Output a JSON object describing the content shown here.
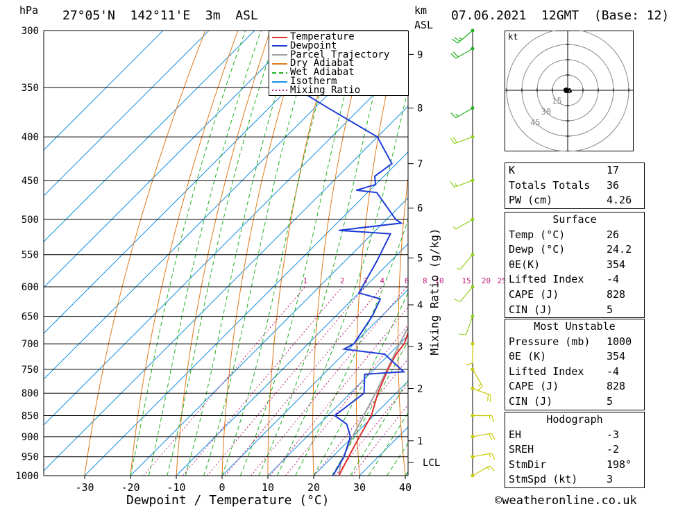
{
  "header": {
    "location": "27°05'N  142°11'E  3m  ASL",
    "datetime": "07.06.2021  12GMT  (Base: 12)",
    "pressure_unit": "hPa",
    "height_unit_line1": "km",
    "height_unit_line2": "ASL",
    "wind_unit": "kt"
  },
  "chart_data": {
    "type": "skew-t",
    "xlabel": "Dewpoint / Temperature (°C)",
    "y2label": "Mixing Ratio (g/kg)",
    "x_ticks": [
      -30,
      -20,
      -10,
      0,
      10,
      20,
      30,
      40
    ],
    "pressure_levels": [
      300,
      350,
      400,
      450,
      500,
      550,
      600,
      650,
      700,
      750,
      800,
      850,
      900,
      950,
      1000
    ],
    "height_ticks_km": [
      {
        "km": "1",
        "p": 910
      },
      {
        "km": "2",
        "p": 790
      },
      {
        "km": "3",
        "p": 705
      },
      {
        "km": "4",
        "p": 630
      },
      {
        "km": "5",
        "p": 555
      },
      {
        "km": "6",
        "p": 485
      },
      {
        "km": "7",
        "p": 430
      },
      {
        "km": "8",
        "p": 370
      },
      {
        "km": "9",
        "p": 320
      }
    ],
    "lcl": {
      "label": "LCL",
      "p": 965
    },
    "mixing_ratio_labels": [
      "1",
      "2",
      "3",
      "4",
      "6",
      "8",
      "10",
      "15",
      "20",
      "25"
    ],
    "legend": [
      {
        "name": "Temperature",
        "color": "#e03030",
        "dash": ""
      },
      {
        "name": "Dewpoint",
        "color": "#1c3bd6",
        "dash": ""
      },
      {
        "name": "Parcel Trajectory",
        "color": "#a0a0a0",
        "dash": ""
      },
      {
        "name": "Dry Adiabat",
        "color": "#e07818",
        "dash": ""
      },
      {
        "name": "Wet Adiabat",
        "color": "#20b020",
        "dash": "6,4"
      },
      {
        "name": "Isotherm",
        "color": "#1890e0",
        "dash": ""
      },
      {
        "name": "Mixing Ratio",
        "color": "#c02080",
        "dash": "2,3"
      }
    ],
    "temperature": [
      {
        "p": 1000,
        "t": 25.5
      },
      {
        "p": 950,
        "t": 23.5
      },
      {
        "p": 900,
        "t": 21.5
      },
      {
        "p": 850,
        "t": 19.5
      },
      {
        "p": 800,
        "t": 16.0
      },
      {
        "p": 750,
        "t": 13.0
      },
      {
        "p": 720,
        "t": 11.5
      },
      {
        "p": 700,
        "t": 11.0
      },
      {
        "p": 680,
        "t": 9.5
      },
      {
        "p": 650,
        "t": 8.0
      },
      {
        "p": 600,
        "t": 4.5
      },
      {
        "p": 550,
        "t": 1.0
      },
      {
        "p": 500,
        "t": -3.5
      },
      {
        "p": 450,
        "t": -8.0
      },
      {
        "p": 440,
        "t": -8.5
      },
      {
        "p": 400,
        "t": -13.5
      },
      {
        "p": 350,
        "t": -20.0
      }
    ],
    "dewpoint": [
      {
        "p": 1000,
        "t": 24.2
      },
      {
        "p": 950,
        "t": 22.5
      },
      {
        "p": 900,
        "t": 19.5
      },
      {
        "p": 870,
        "t": 16.0
      },
      {
        "p": 850,
        "t": 11.5
      },
      {
        "p": 800,
        "t": 13.0
      },
      {
        "p": 760,
        "t": 9.0
      },
      {
        "p": 755,
        "t": 17.0
      },
      {
        "p": 720,
        "t": 9.0
      },
      {
        "p": 710,
        "t": -1.0
      },
      {
        "p": 700,
        "t": 0.0
      },
      {
        "p": 650,
        "t": -2.0
      },
      {
        "p": 620,
        "t": -4.0
      },
      {
        "p": 610,
        "t": -10.0
      },
      {
        "p": 560,
        "t": -13.0
      },
      {
        "p": 520,
        "t": -16.0
      },
      {
        "p": 515,
        "t": -28.0
      },
      {
        "p": 505,
        "t": -16.0
      },
      {
        "p": 500,
        "t": -18.0
      },
      {
        "p": 465,
        "t": -28.0
      },
      {
        "p": 462,
        "t": -33.0
      },
      {
        "p": 455,
        "t": -30.0
      },
      {
        "p": 445,
        "t": -32.0
      },
      {
        "p": 430,
        "t": -31.0
      },
      {
        "p": 400,
        "t": -40.0
      },
      {
        "p": 370,
        "t": -57.0
      },
      {
        "p": 340,
        "t": -75.0
      },
      {
        "p": 320,
        "t": -79.0
      },
      {
        "p": 305,
        "t": -78.0
      },
      {
        "p": 300,
        "t": -79.0
      }
    ],
    "parcel": [
      {
        "p": 1000,
        "t": 25.5
      },
      {
        "p": 965,
        "t": 23.0
      },
      {
        "p": 900,
        "t": 20.0
      },
      {
        "p": 850,
        "t": 17.8
      },
      {
        "p": 800,
        "t": 15.5
      },
      {
        "p": 700,
        "t": 10.0
      },
      {
        "p": 600,
        "t": 4.0
      },
      {
        "p": 500,
        "t": -4.0
      },
      {
        "p": 450,
        "t": -8.5
      },
      {
        "p": 400,
        "t": -14.0
      },
      {
        "p": 350,
        "t": -20.5
      }
    ],
    "wind_barbs": [
      {
        "p": 300,
        "dir": 230,
        "spd": 25
      },
      {
        "p": 315,
        "dir": 240,
        "spd": 20
      },
      {
        "p": 370,
        "dir": 240,
        "spd": 15
      },
      {
        "p": 400,
        "dir": 250,
        "spd": 20
      },
      {
        "p": 450,
        "dir": 250,
        "spd": 15
      },
      {
        "p": 500,
        "dir": 240,
        "spd": 5
      },
      {
        "p": 550,
        "dir": 220,
        "spd": 5
      },
      {
        "p": 600,
        "dir": 220,
        "spd": 10
      },
      {
        "p": 650,
        "dir": 200,
        "spd": 10
      },
      {
        "p": 700,
        "dir": 180,
        "spd": 10
      },
      {
        "p": 750,
        "dir": 150,
        "spd": 15
      },
      {
        "p": 790,
        "dir": 110,
        "spd": 20
      },
      {
        "p": 850,
        "dir": 90,
        "spd": 15
      },
      {
        "p": 900,
        "dir": 80,
        "spd": 20
      },
      {
        "p": 950,
        "dir": 80,
        "spd": 15
      },
      {
        "p": 1000,
        "dir": 60,
        "spd": 15
      }
    ],
    "hodograph": {
      "unit": "kt",
      "rings": [
        "15",
        "30",
        "45"
      ]
    }
  },
  "indices": [
    {
      "label": "K",
      "value": "17"
    },
    {
      "label": "Totals Totals",
      "value": "36"
    },
    {
      "label": "PW (cm)",
      "value": "4.26"
    }
  ],
  "surface": {
    "title": "Surface",
    "rows": [
      {
        "label": "Temp (°C)",
        "value": "26"
      },
      {
        "label": "Dewp (°C)",
        "value": "24.2"
      },
      {
        "label": "θE(K)",
        "value": "354"
      },
      {
        "label": "Lifted Index",
        "value": "-4"
      },
      {
        "label": "CAPE (J)",
        "value": "828"
      },
      {
        "label": "CIN (J)",
        "value": "5"
      }
    ]
  },
  "most_unstable": {
    "title": "Most Unstable",
    "rows": [
      {
        "label": "Pressure (mb)",
        "value": "1000"
      },
      {
        "label": "θE (K)",
        "value": "354"
      },
      {
        "label": "Lifted Index",
        "value": "-4"
      },
      {
        "label": "CAPE (J)",
        "value": "828"
      },
      {
        "label": "CIN (J)",
        "value": "5"
      }
    ]
  },
  "hodograph_box": {
    "title": "Hodograph",
    "rows": [
      {
        "label": "EH",
        "value": "-3"
      },
      {
        "label": "SREH",
        "value": "-2"
      },
      {
        "label": "StmDir",
        "value": "198°"
      },
      {
        "label": "StmSpd (kt)",
        "value": "3"
      }
    ]
  },
  "footer": {
    "text": "©weatheronline.co.uk"
  }
}
